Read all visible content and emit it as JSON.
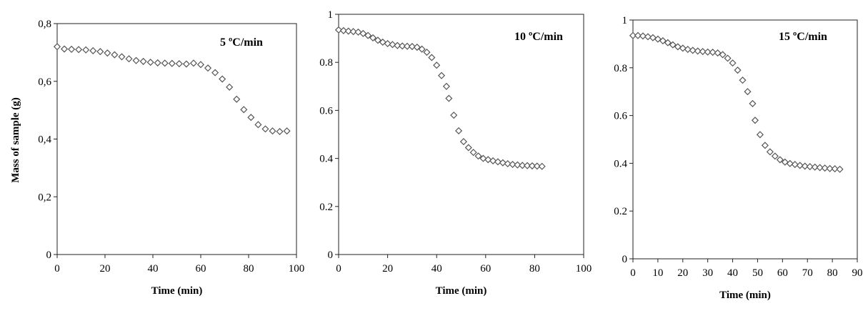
{
  "chart_data": [
    {
      "type": "scatter",
      "title": "5 ºC/min",
      "xlabel": "Time (min)",
      "ylabel": "Mass of sample (g)",
      "xlim": [
        0,
        100
      ],
      "ylim": [
        0,
        0.8
      ],
      "xticks": [
        "0",
        "20",
        "40",
        "60",
        "80",
        "100"
      ],
      "yticks": [
        "0",
        "0,2",
        "0,4",
        "0,6",
        "0,8"
      ],
      "grid": false,
      "marker": "diamond-open",
      "points": [
        [
          0,
          0.72
        ],
        [
          3,
          0.712
        ],
        [
          6,
          0.711
        ],
        [
          9,
          0.71
        ],
        [
          12,
          0.709
        ],
        [
          15,
          0.706
        ],
        [
          18,
          0.703
        ],
        [
          21,
          0.698
        ],
        [
          24,
          0.692
        ],
        [
          27,
          0.685
        ],
        [
          30,
          0.678
        ],
        [
          33,
          0.672
        ],
        [
          36,
          0.669
        ],
        [
          39,
          0.666
        ],
        [
          42,
          0.664
        ],
        [
          45,
          0.663
        ],
        [
          48,
          0.662
        ],
        [
          51,
          0.661
        ],
        [
          54,
          0.66
        ],
        [
          57,
          0.663
        ],
        [
          60,
          0.658
        ],
        [
          63,
          0.646
        ],
        [
          66,
          0.63
        ],
        [
          69,
          0.608
        ],
        [
          72,
          0.58
        ],
        [
          75,
          0.538
        ],
        [
          78,
          0.502
        ],
        [
          81,
          0.475
        ],
        [
          84,
          0.45
        ],
        [
          87,
          0.435
        ],
        [
          90,
          0.428
        ],
        [
          93,
          0.426
        ],
        [
          96,
          0.428
        ]
      ]
    },
    {
      "type": "scatter",
      "title": "10 ºC/min",
      "xlabel": "Time (min)",
      "ylabel": "",
      "xlim": [
        0,
        100
      ],
      "ylim": [
        0,
        1
      ],
      "xticks": [
        "0",
        "20",
        "40",
        "60",
        "80",
        "100"
      ],
      "yticks": [
        "0",
        "0.2",
        "0.4",
        "0.6",
        "0.8",
        "1"
      ],
      "grid": false,
      "marker": "diamond-open",
      "points": [
        [
          0,
          0.935
        ],
        [
          2,
          0.932
        ],
        [
          4,
          0.93
        ],
        [
          6,
          0.928
        ],
        [
          8,
          0.926
        ],
        [
          10,
          0.92
        ],
        [
          12,
          0.912
        ],
        [
          14,
          0.902
        ],
        [
          16,
          0.892
        ],
        [
          18,
          0.884
        ],
        [
          20,
          0.878
        ],
        [
          22,
          0.874
        ],
        [
          24,
          0.87
        ],
        [
          26,
          0.868
        ],
        [
          28,
          0.867
        ],
        [
          30,
          0.866
        ],
        [
          32,
          0.863
        ],
        [
          34,
          0.855
        ],
        [
          36,
          0.842
        ],
        [
          38,
          0.82
        ],
        [
          40,
          0.788
        ],
        [
          42,
          0.745
        ],
        [
          44,
          0.7
        ],
        [
          45,
          0.65
        ],
        [
          47,
          0.58
        ],
        [
          49,
          0.515
        ],
        [
          51,
          0.47
        ],
        [
          53,
          0.445
        ],
        [
          55,
          0.425
        ],
        [
          57,
          0.41
        ],
        [
          59,
          0.4
        ],
        [
          61,
          0.395
        ],
        [
          63,
          0.39
        ],
        [
          65,
          0.386
        ],
        [
          67,
          0.382
        ],
        [
          69,
          0.378
        ],
        [
          71,
          0.375
        ],
        [
          73,
          0.373
        ],
        [
          75,
          0.371
        ],
        [
          77,
          0.37
        ],
        [
          79,
          0.369
        ],
        [
          81,
          0.368
        ],
        [
          83,
          0.367
        ]
      ]
    },
    {
      "type": "scatter",
      "title": "15 ºC/min",
      "xlabel": "Time (min)",
      "ylabel": "",
      "xlim": [
        0,
        90
      ],
      "ylim": [
        0,
        1
      ],
      "xticks": [
        "0",
        "10",
        "20",
        "30",
        "40",
        "50",
        "60",
        "70",
        "80",
        "90"
      ],
      "yticks": [
        "0",
        "0.2",
        "0.4",
        "0.6",
        "0.8",
        "1"
      ],
      "grid": false,
      "marker": "diamond-open",
      "points": [
        [
          0,
          0.935
        ],
        [
          2,
          0.935
        ],
        [
          4,
          0.933
        ],
        [
          6,
          0.93
        ],
        [
          8,
          0.926
        ],
        [
          10,
          0.92
        ],
        [
          12,
          0.913
        ],
        [
          14,
          0.905
        ],
        [
          16,
          0.896
        ],
        [
          18,
          0.888
        ],
        [
          20,
          0.882
        ],
        [
          22,
          0.877
        ],
        [
          24,
          0.873
        ],
        [
          26,
          0.87
        ],
        [
          28,
          0.868
        ],
        [
          30,
          0.866
        ],
        [
          32,
          0.865
        ],
        [
          34,
          0.862
        ],
        [
          36,
          0.855
        ],
        [
          38,
          0.84
        ],
        [
          40,
          0.82
        ],
        [
          42,
          0.79
        ],
        [
          44,
          0.748
        ],
        [
          46,
          0.7
        ],
        [
          48,
          0.65
        ],
        [
          49,
          0.58
        ],
        [
          51,
          0.52
        ],
        [
          53,
          0.475
        ],
        [
          55,
          0.448
        ],
        [
          57,
          0.43
        ],
        [
          59,
          0.415
        ],
        [
          61,
          0.405
        ],
        [
          63,
          0.399
        ],
        [
          65,
          0.395
        ],
        [
          67,
          0.391
        ],
        [
          69,
          0.388
        ],
        [
          71,
          0.386
        ],
        [
          73,
          0.384
        ],
        [
          75,
          0.382
        ],
        [
          77,
          0.38
        ],
        [
          79,
          0.378
        ],
        [
          81,
          0.377
        ],
        [
          83,
          0.375
        ]
      ]
    }
  ]
}
